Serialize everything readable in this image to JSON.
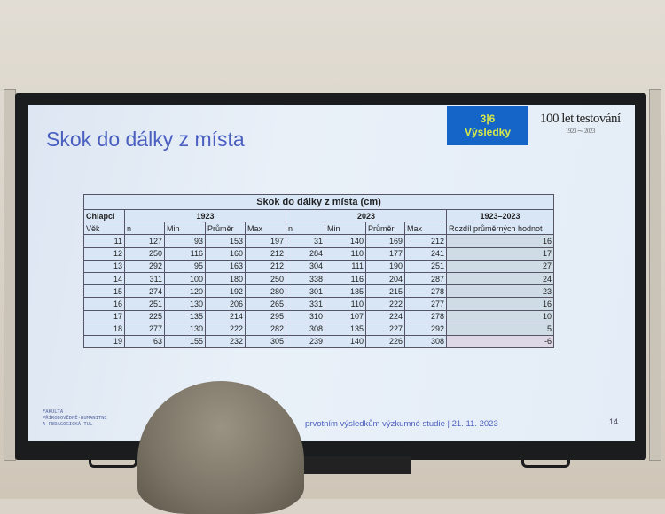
{
  "slide": {
    "title": "Skok do dálky z místa",
    "badge_line1": "3|6",
    "badge_line2": "Výsledky",
    "logo_text": "100 let testování",
    "logo_years": "1923 ⁓ 2023",
    "faculty": [
      "FAKULTA",
      "PŘÍRODOVĚDNĚ-HUMANITNÍ",
      "A PEDAGOGICKÁ TUL"
    ],
    "footer": "prvotním výsledkům výzkumné studie | 21. 11. 2023",
    "page_number": "14"
  },
  "table": {
    "title": "Skok do dálky z místa (cm)",
    "group_label": "Chlapci",
    "year1": "1923",
    "year2": "2023",
    "diff_group": "1923–2023",
    "headers": [
      "Věk",
      "n",
      "Min",
      "Průměr",
      "Max",
      "n",
      "Min",
      "Průměr",
      "Max",
      "Rozdíl průměrných hodnot"
    ],
    "rows": [
      [
        11,
        127,
        93,
        153,
        197,
        31,
        140,
        169,
        212,
        16
      ],
      [
        12,
        250,
        116,
        160,
        212,
        284,
        110,
        177,
        241,
        17
      ],
      [
        13,
        292,
        95,
        163,
        212,
        304,
        111,
        190,
        251,
        27
      ],
      [
        14,
        311,
        100,
        180,
        250,
        338,
        116,
        204,
        287,
        24
      ],
      [
        15,
        274,
        120,
        192,
        280,
        301,
        135,
        215,
        278,
        23
      ],
      [
        16,
        251,
        130,
        206,
        265,
        331,
        110,
        222,
        277,
        16
      ],
      [
        17,
        225,
        135,
        214,
        295,
        310,
        107,
        224,
        278,
        10
      ],
      [
        18,
        277,
        130,
        222,
        282,
        308,
        135,
        227,
        292,
        5
      ],
      [
        19,
        63,
        155,
        232,
        305,
        239,
        140,
        226,
        308,
        -6
      ]
    ]
  }
}
